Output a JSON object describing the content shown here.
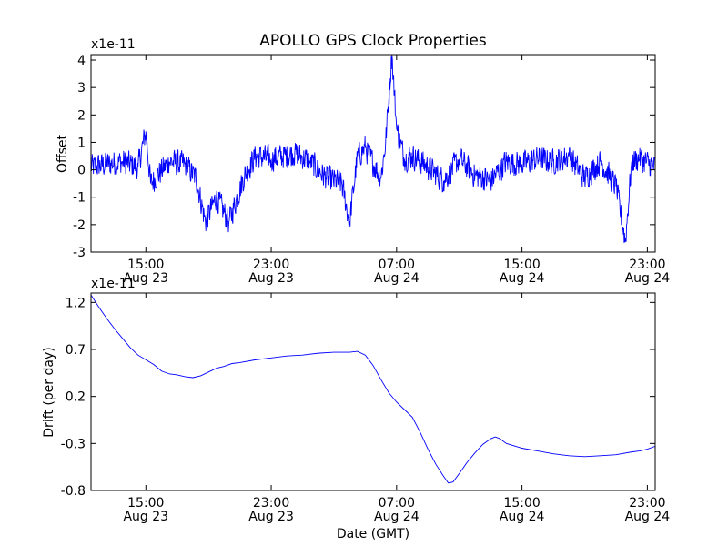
{
  "chart_data": [
    {
      "type": "line",
      "title": "APOLLO GPS Clock Properties",
      "xlabel": "",
      "ylabel": "Offset",
      "exponent_label": "x1e-11",
      "x_ticks": [
        {
          "hours": 15,
          "line1": "15:00",
          "line2": "Aug 23"
        },
        {
          "hours": 23,
          "line1": "23:00",
          "line2": "Aug 23"
        },
        {
          "hours": 31,
          "line1": "07:00",
          "line2": "Aug 24"
        },
        {
          "hours": 39,
          "line1": "15:00",
          "line2": "Aug 24"
        },
        {
          "hours": 47,
          "line1": "23:00",
          "line2": "Aug 24"
        }
      ],
      "xlim": [
        11.5,
        47.5
      ],
      "ylim": [
        -3,
        4.2
      ],
      "y_ticks": [
        -3,
        -2,
        -1,
        0,
        1,
        2,
        3,
        4
      ],
      "y_tick_labels": [
        "-3",
        "-2",
        "-1",
        "0",
        "1",
        "2",
        "3",
        "4"
      ],
      "series": [
        {
          "name": "Offset",
          "color": "#0000ff",
          "anchors": [
            [
              11.5,
              0.1
            ],
            [
              12.5,
              0.2
            ],
            [
              13.5,
              0.3
            ],
            [
              14.5,
              0.1
            ],
            [
              15.0,
              1.4
            ],
            [
              15.3,
              -0.5
            ],
            [
              16.5,
              0.3
            ],
            [
              17.5,
              0.2
            ],
            [
              18.2,
              -0.3
            ],
            [
              18.8,
              -1.9
            ],
            [
              19.5,
              -1.0
            ],
            [
              20.3,
              -1.9
            ],
            [
              21.3,
              -0.2
            ],
            [
              22.0,
              0.5
            ],
            [
              23.0,
              0.4
            ],
            [
              24.5,
              0.6
            ],
            [
              25.5,
              0.3
            ],
            [
              26.5,
              -0.3
            ],
            [
              27.5,
              -0.5
            ],
            [
              28.0,
              -1.9
            ],
            [
              28.5,
              0.5
            ],
            [
              29.0,
              0.8
            ],
            [
              30.0,
              -0.3
            ],
            [
              30.3,
              1.0
            ],
            [
              30.7,
              4.2
            ],
            [
              31.0,
              1.5
            ],
            [
              31.5,
              0.4
            ],
            [
              32.0,
              0.5
            ],
            [
              33.0,
              0.1
            ],
            [
              34.0,
              -0.4
            ],
            [
              35.0,
              0.4
            ],
            [
              36.0,
              -0.2
            ],
            [
              37.0,
              -0.4
            ],
            [
              38.0,
              0.3
            ],
            [
              39.0,
              0.2
            ],
            [
              40.0,
              0.4
            ],
            [
              41.0,
              0.3
            ],
            [
              42.0,
              0.5
            ],
            [
              43.0,
              -0.3
            ],
            [
              44.0,
              0.3
            ],
            [
              45.0,
              -0.6
            ],
            [
              45.6,
              -2.6
            ],
            [
              46.0,
              0.3
            ],
            [
              46.5,
              0.4
            ],
            [
              47.5,
              0.1
            ]
          ],
          "noise_amplitude": 0.75,
          "samples": 1400
        }
      ]
    },
    {
      "type": "line",
      "title": "",
      "xlabel": "Date (GMT)",
      "ylabel": "Drift (per day)",
      "exponent_label": "x1e-11",
      "x_ticks": [
        {
          "hours": 15,
          "line1": "15:00",
          "line2": "Aug 23"
        },
        {
          "hours": 23,
          "line1": "23:00",
          "line2": "Aug 23"
        },
        {
          "hours": 31,
          "line1": "07:00",
          "line2": "Aug 24"
        },
        {
          "hours": 39,
          "line1": "15:00",
          "line2": "Aug 24"
        },
        {
          "hours": 47,
          "line1": "23:00",
          "line2": "Aug 24"
        }
      ],
      "xlim": [
        11.5,
        47.5
      ],
      "ylim": [
        -0.8,
        1.3
      ],
      "y_ticks": [
        -0.8,
        -0.3,
        0.2,
        0.7,
        1.2
      ],
      "y_tick_labels": [
        "-0.8",
        "-0.3",
        "0.2",
        "0.7",
        "1.2"
      ],
      "series": [
        {
          "name": "Drift",
          "color": "#0000ff",
          "points": [
            [
              11.5,
              1.28
            ],
            [
              12.0,
              1.15
            ],
            [
              12.5,
              1.03
            ],
            [
              13.0,
              0.92
            ],
            [
              13.5,
              0.82
            ],
            [
              14.0,
              0.72
            ],
            [
              14.5,
              0.64
            ],
            [
              15.0,
              0.59
            ],
            [
              15.5,
              0.54
            ],
            [
              16.0,
              0.47
            ],
            [
              16.5,
              0.44
            ],
            [
              17.0,
              0.43
            ],
            [
              17.5,
              0.41
            ],
            [
              18.0,
              0.4
            ],
            [
              18.5,
              0.42
            ],
            [
              19.0,
              0.46
            ],
            [
              19.5,
              0.5
            ],
            [
              20.0,
              0.52
            ],
            [
              20.5,
              0.55
            ],
            [
              21.0,
              0.56
            ],
            [
              22.0,
              0.59
            ],
            [
              23.0,
              0.61
            ],
            [
              24.0,
              0.63
            ],
            [
              25.0,
              0.64
            ],
            [
              26.0,
              0.66
            ],
            [
              27.0,
              0.67
            ],
            [
              28.0,
              0.67
            ],
            [
              28.5,
              0.68
            ],
            [
              29.0,
              0.64
            ],
            [
              29.5,
              0.53
            ],
            [
              30.0,
              0.38
            ],
            [
              30.5,
              0.24
            ],
            [
              31.0,
              0.14
            ],
            [
              31.5,
              0.06
            ],
            [
              32.0,
              -0.02
            ],
            [
              32.5,
              -0.18
            ],
            [
              33.0,
              -0.36
            ],
            [
              33.5,
              -0.52
            ],
            [
              34.0,
              -0.65
            ],
            [
              34.3,
              -0.72
            ],
            [
              34.6,
              -0.71
            ],
            [
              35.0,
              -0.62
            ],
            [
              35.5,
              -0.5
            ],
            [
              36.0,
              -0.4
            ],
            [
              36.5,
              -0.31
            ],
            [
              37.0,
              -0.25
            ],
            [
              37.3,
              -0.23
            ],
            [
              37.6,
              -0.25
            ],
            [
              38.0,
              -0.3
            ],
            [
              39.0,
              -0.35
            ],
            [
              40.0,
              -0.38
            ],
            [
              41.0,
              -0.41
            ],
            [
              42.0,
              -0.43
            ],
            [
              43.0,
              -0.44
            ],
            [
              44.0,
              -0.43
            ],
            [
              45.0,
              -0.42
            ],
            [
              46.0,
              -0.39
            ],
            [
              46.5,
              -0.38
            ],
            [
              47.0,
              -0.36
            ],
            [
              47.5,
              -0.33
            ]
          ]
        }
      ]
    }
  ]
}
